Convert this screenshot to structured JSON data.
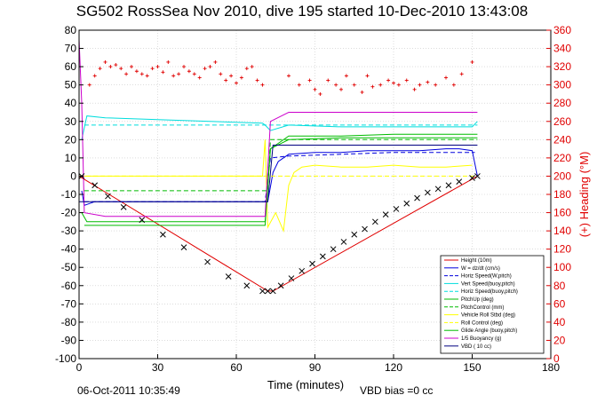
{
  "chart_data": {
    "type": "line",
    "title": "SG502 RossSea Nov 2010, dive 195 started 10-Dec-2010 13:43:08",
    "xlabel": "Time (minutes)",
    "ylabel": "",
    "ylabel_right": "(+) Heading (°M)",
    "xlim": [
      0,
      180
    ],
    "ylim": [
      -100,
      80
    ],
    "ylim_right": [
      0,
      360
    ],
    "xticks": [
      0,
      30,
      60,
      90,
      120,
      150,
      180
    ],
    "yticks": [
      80,
      70,
      60,
      50,
      40,
      30,
      20,
      10,
      0,
      -10,
      -20,
      -30,
      -40,
      -50,
      -60,
      -70,
      -80,
      -90,
      -100
    ],
    "yticks_right": [
      360,
      340,
      320,
      300,
      280,
      260,
      240,
      220,
      200,
      180,
      160,
      140,
      120,
      100,
      80,
      60,
      40,
      20,
      0
    ],
    "grid": true,
    "legend_position": "bottom-right",
    "footer_left": "06-Oct-2011 10:35:49",
    "footer_center": "VBD bias =0 cc",
    "series": [
      {
        "name": "Height (10m)",
        "color": "#e00000",
        "style": "solid",
        "x": [
          0,
          72,
          73,
          74,
          152
        ],
        "values": [
          0,
          -63,
          -63,
          -63,
          0
        ]
      },
      {
        "name": "W = dz/dt (cm/s)",
        "color": "#0000dd",
        "style": "solid",
        "x": [
          1,
          2,
          6,
          20,
          40,
          60,
          70,
          72,
          74,
          76,
          80,
          90,
          100,
          110,
          120,
          130,
          140,
          145,
          150,
          152
        ],
        "values": [
          -8,
          -16,
          -14,
          -14,
          -14,
          -14,
          -14,
          -14,
          2,
          8,
          12,
          13,
          13,
          14,
          14,
          14,
          15,
          15,
          14,
          0
        ]
      },
      {
        "name": "Horiz Speed(W,pitch)",
        "color": "#0000dd",
        "style": "dashed",
        "x": [
          2,
          20,
          40,
          60,
          71,
          73,
          80,
          100,
          120,
          140,
          151
        ],
        "values": [
          -14,
          -14,
          -14,
          -14,
          -14,
          10,
          11,
          12,
          13,
          13,
          13
        ]
      },
      {
        "name": "Vert Speed(buoy,pitch)",
        "color": "#00dddd",
        "style": "solid",
        "x": [
          1,
          3,
          10,
          30,
          50,
          70,
          71,
          73,
          80,
          100,
          120,
          140,
          150,
          152
        ],
        "values": [
          20,
          33,
          32,
          31,
          30,
          29,
          28,
          25,
          28,
          27,
          27,
          27,
          27,
          30
        ]
      },
      {
        "name": "Horiz Speed(buoy,pitch)",
        "color": "#00dddd",
        "style": "dashed",
        "x": [
          2,
          40,
          72,
          74,
          152
        ],
        "values": [
          28,
          28,
          28,
          28,
          28
        ]
      },
      {
        "name": "PitchUp (deg)",
        "color": "#00bb00",
        "style": "solid",
        "x": [
          1,
          3,
          20,
          40,
          60,
          71,
          73,
          80,
          100,
          120,
          140,
          152
        ],
        "values": [
          -20,
          -25,
          -25,
          -25,
          -25,
          -25,
          15,
          22,
          22,
          23,
          23,
          23
        ]
      },
      {
        "name": "PitchControl (mm)",
        "color": "#00bb00",
        "style": "dashed",
        "x": [
          2,
          72,
          73,
          152
        ],
        "values": [
          -8,
          -8,
          20,
          20
        ]
      },
      {
        "name": "Vehicle Roll Stbd (deg)",
        "color": "#ffff00",
        "style": "solid",
        "x": [
          0,
          10,
          20,
          30,
          40,
          50,
          60,
          70,
          71,
          72,
          75,
          78,
          80,
          82,
          85,
          90,
          100,
          110,
          120,
          130,
          140,
          150
        ],
        "values": [
          0,
          0,
          0,
          0,
          0,
          0,
          0,
          0,
          20,
          -28,
          -20,
          -30,
          -5,
          2,
          5,
          6,
          5,
          5,
          6,
          5,
          5,
          6
        ]
      },
      {
        "name": "Roll Control (deg)",
        "color": "#ffff00",
        "style": "dashed",
        "x": [
          0,
          72,
          74,
          152
        ],
        "values": [
          0,
          0,
          0,
          0
        ]
      },
      {
        "name": "Glide Angle (buoy,pitch)",
        "color": "#00bb00",
        "style": "solid",
        "x": [
          2,
          20,
          40,
          60,
          71,
          73,
          80,
          100,
          120,
          140,
          152
        ],
        "values": [
          -27,
          -27,
          -27,
          -27,
          -27,
          15,
          20,
          21,
          21,
          21,
          21
        ]
      },
      {
        "name": "1/5 Buoyancy (g)",
        "color": "#cc00cc",
        "style": "solid",
        "x": [
          0,
          1,
          2,
          10,
          30,
          50,
          70,
          71,
          73,
          80,
          100,
          120,
          140,
          150,
          152
        ],
        "values": [
          75,
          40,
          -20,
          -22,
          -22,
          -22,
          -22,
          -22,
          30,
          35,
          35,
          35,
          35,
          35,
          35
        ]
      },
      {
        "name": "VBD ( 10 cc)",
        "color": "#000080",
        "style": "solid",
        "x": [
          0,
          72,
          74,
          152
        ],
        "values": [
          -14,
          -14,
          17,
          17
        ]
      }
    ],
    "heading_series": {
      "name": "(+) Heading (°M)",
      "color": "#e00000",
      "marker": "+",
      "x": [
        4,
        6,
        8,
        10,
        12,
        14,
        16,
        18,
        20,
        22,
        24,
        26,
        28,
        30,
        32,
        34,
        36,
        38,
        40,
        42,
        44,
        46,
        48,
        50,
        52,
        54,
        56,
        58,
        60,
        62,
        64,
        66,
        68,
        70,
        80,
        84,
        88,
        90,
        92,
        95,
        98,
        100,
        102,
        105,
        108,
        110,
        112,
        115,
        118,
        120,
        122,
        125,
        128,
        130,
        133,
        136,
        140,
        143,
        146,
        150
      ],
      "values": [
        300,
        310,
        318,
        325,
        320,
        322,
        318,
        312,
        320,
        315,
        312,
        310,
        318,
        320,
        314,
        325,
        310,
        312,
        320,
        315,
        312,
        308,
        318,
        320,
        325,
        312,
        305,
        310,
        302,
        308,
        318,
        320,
        305,
        300,
        310,
        300,
        305,
        295,
        290,
        305,
        300,
        295,
        310,
        300,
        292,
        310,
        298,
        300,
        305,
        302,
        300,
        305,
        295,
        300,
        303,
        300,
        308,
        300,
        312,
        325
      ]
    },
    "markers_series": {
      "name": "Height (10m)",
      "marker": "x",
      "x": [
        1,
        6,
        11,
        17,
        24,
        32,
        40,
        49,
        57,
        64,
        70,
        72,
        74,
        77,
        81,
        85,
        89,
        93,
        97,
        101,
        105,
        109,
        113,
        117,
        121,
        125,
        129,
        133,
        137,
        141,
        145,
        150,
        152
      ],
      "values": [
        0,
        -5,
        -11,
        -17,
        -24,
        -32,
        -39,
        -47,
        -55,
        -60,
        -63,
        -63,
        -63,
        -60,
        -56,
        -52,
        -48,
        -44,
        -40,
        -36,
        -32,
        -29,
        -25,
        -21,
        -18,
        -15,
        -12,
        -9,
        -7,
        -5,
        -3,
        -1,
        0
      ]
    }
  }
}
